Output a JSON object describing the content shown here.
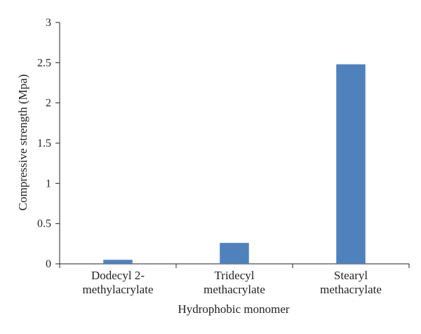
{
  "chart_data": {
    "type": "bar",
    "title": "",
    "xlabel": "Hydrophobic monomer",
    "ylabel": "Compressive strength (Mpa)",
    "ylim": [
      0,
      3
    ],
    "yticks": [
      "0",
      "0.5",
      "1",
      "1.5",
      "2",
      "2.5",
      "3"
    ],
    "grid": false,
    "categories": [
      [
        "Dodecyl 2-",
        "methylacrylate"
      ],
      [
        "Tridecyl",
        "methacrylate"
      ],
      [
        "Stearyl",
        "methacrylate"
      ]
    ],
    "values": [
      0.05,
      0.26,
      2.48
    ],
    "bar_color": "#4f81bd",
    "axis_color": "#231f20"
  }
}
